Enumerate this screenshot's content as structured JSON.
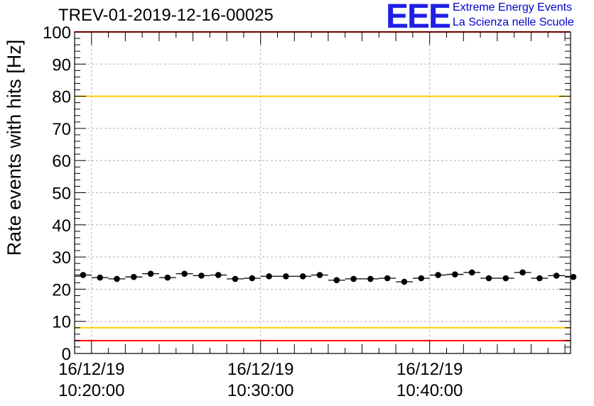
{
  "chart_data": {
    "type": "scatter",
    "title": "TREV-01-2019-12-16-00025",
    "ylabel": "Rate events with hits [Hz]",
    "xlabel": "",
    "ylim": [
      0,
      100
    ],
    "yticks": [
      0,
      10,
      20,
      30,
      40,
      50,
      60,
      70,
      80,
      90,
      100
    ],
    "xlim": [
      "16/12/19 10:19:00",
      "16/12/19 10:48:20"
    ],
    "xtick_labels": [
      {
        "date": "16/12/19",
        "time": "10:20:00"
      },
      {
        "date": "16/12/19",
        "time": "10:30:00"
      },
      {
        "date": "16/12/19",
        "time": "10:40:00"
      }
    ],
    "grid": true,
    "bin_width_seconds": 60,
    "series": [
      {
        "x": [
          "10:19:00",
          "10:20:00",
          "10:21:00",
          "10:22:00",
          "10:23:00",
          "10:24:00",
          "10:25:00",
          "10:26:00",
          "10:27:00",
          "10:28:00",
          "10:29:00",
          "10:30:00",
          "10:31:00",
          "10:32:00",
          "10:33:00",
          "10:34:00",
          "10:35:00",
          "10:36:00",
          "10:37:00",
          "10:38:00",
          "10:39:00",
          "10:40:00",
          "10:41:00",
          "10:42:00",
          "10:43:00",
          "10:44:00",
          "10:45:00",
          "10:46:00",
          "10:47:00",
          "10:48:00"
        ],
        "y": [
          24.4,
          23.6,
          23.2,
          23.8,
          24.8,
          23.6,
          24.8,
          24.2,
          24.4,
          23.2,
          23.4,
          24.0,
          24.0,
          24.0,
          24.4,
          22.8,
          23.2,
          23.2,
          23.4,
          22.3,
          23.4,
          24.4,
          24.6,
          25.2,
          23.4,
          23.4,
          25.2,
          23.4,
          24.2,
          23.8
        ]
      }
    ],
    "reference_lines": [
      {
        "y": 100,
        "color": "#ff0000"
      },
      {
        "y": 80,
        "color": "#ffcc00"
      },
      {
        "y": 8,
        "color": "#ffcc00"
      },
      {
        "y": 4,
        "color": "#ff0000"
      }
    ]
  },
  "brand": {
    "logo_text": "EEE",
    "line1": "Extreme Energy Events",
    "line2": "La Scienza nelle Scuole",
    "color": "#0000cc"
  }
}
